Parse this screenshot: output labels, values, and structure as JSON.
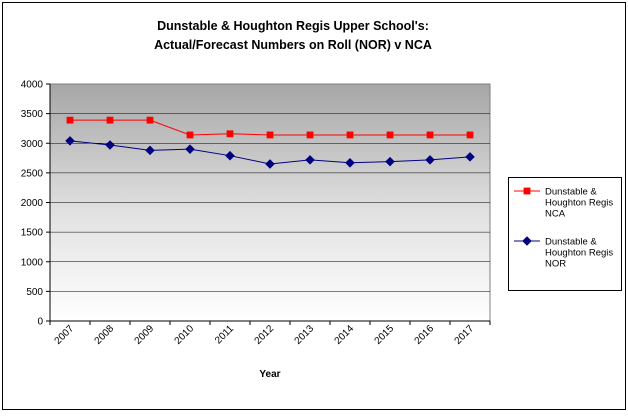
{
  "chart_data": {
    "type": "line",
    "title": [
      "Dunstable & Houghton Regis Upper School's:",
      "Actual/Forecast Numbers on Roll (NOR) v NCA"
    ],
    "xlabel": "Year",
    "ylabel": "",
    "categories": [
      "2007",
      "2008",
      "2009",
      "2010",
      "2011",
      "2012",
      "2013",
      "2014",
      "2015",
      "2016",
      "2017"
    ],
    "ylim": [
      0,
      4000
    ],
    "yticks": [
      0,
      500,
      1000,
      1500,
      2000,
      2500,
      3000,
      3500,
      4000
    ],
    "grid": true,
    "legend_position": "right",
    "series": [
      {
        "name": "Dunstable & Houghton Regis NCA",
        "legend_lines": [
          "Dunstable &",
          "Houghton Regis",
          "NCA"
        ],
        "marker": "square",
        "color": "#ff0000",
        "values": [
          3390,
          3390,
          3390,
          3140,
          3160,
          3140,
          3140,
          3140,
          3140,
          3140,
          3140
        ]
      },
      {
        "name": "Dunstable & Houghton Regis NOR",
        "legend_lines": [
          "Dunstable &",
          "Houghton Regis",
          "NOR"
        ],
        "marker": "diamond",
        "color": "#000080",
        "values": [
          3040,
          2970,
          2880,
          2900,
          2790,
          2650,
          2720,
          2670,
          2690,
          2720,
          2770
        ]
      }
    ]
  }
}
